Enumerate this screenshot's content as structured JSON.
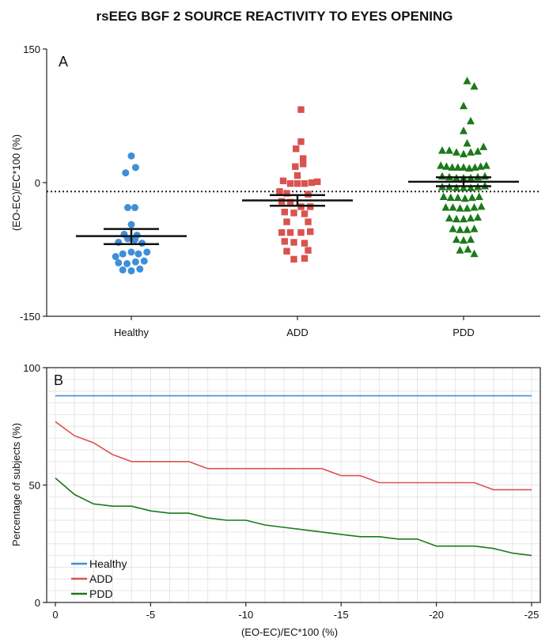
{
  "chart_data": [
    {
      "panel": "A",
      "type": "scatter",
      "title": "rsEEG BGF 2 SOURCE REACTIVITY TO EYES OPENING",
      "ylabel": "(EO-EC)/EC*100 (%)",
      "xlabel": "",
      "ylim": [
        -150,
        150
      ],
      "yticks": [
        150,
        0,
        -150
      ],
      "reference_line_y": -10,
      "categories": [
        "Healthy",
        "ADD",
        "PDD"
      ],
      "colors": {
        "Healthy": "#3f8fd8",
        "ADD": "#d9534f",
        "PDD": "#1a7a1a"
      },
      "markers": {
        "Healthy": "circle",
        "ADD": "square",
        "PDD": "triangle"
      },
      "series": [
        {
          "name": "Healthy",
          "points": [
            [
              0,
              30
            ],
            [
              -0.08,
              11
            ],
            [
              0.06,
              17
            ],
            [
              -0.05,
              -28
            ],
            [
              0.05,
              -28
            ],
            [
              0,
              -47
            ],
            [
              -0.1,
              -58
            ],
            [
              0.08,
              -59
            ],
            [
              -0.18,
              -67
            ],
            [
              -0.05,
              -63
            ],
            [
              0.05,
              -64
            ],
            [
              0.15,
              -68
            ],
            [
              -0.22,
              -83
            ],
            [
              -0.12,
              -80
            ],
            [
              0,
              -78
            ],
            [
              0.1,
              -80
            ],
            [
              0.22,
              -78
            ],
            [
              -0.18,
              -90
            ],
            [
              -0.06,
              -91
            ],
            [
              0.06,
              -89
            ],
            [
              0.18,
              -88
            ],
            [
              -0.12,
              -98
            ],
            [
              0,
              -99
            ],
            [
              0.12,
              -97
            ]
          ],
          "mean": -60,
          "sem_low": -69,
          "sem_high": -52
        },
        {
          "name": "ADD",
          "points": [
            [
              0.05,
              82
            ],
            [
              0.05,
              46
            ],
            [
              -0.02,
              38
            ],
            [
              0.08,
              27
            ],
            [
              -0.03,
              18
            ],
            [
              0.08,
              21
            ],
            [
              0,
              8
            ],
            [
              -0.2,
              2
            ],
            [
              -0.1,
              -1
            ],
            [
              0,
              -1
            ],
            [
              0.1,
              -1
            ],
            [
              0.2,
              0
            ],
            [
              0.28,
              1
            ],
            [
              -0.25,
              -10
            ],
            [
              -0.15,
              -12
            ],
            [
              0.15,
              -13
            ],
            [
              -0.22,
              -21
            ],
            [
              -0.1,
              -22
            ],
            [
              0.05,
              -27
            ],
            [
              0.18,
              -27
            ],
            [
              -0.18,
              -33
            ],
            [
              -0.05,
              -34
            ],
            [
              0.1,
              -35
            ],
            [
              -0.15,
              -44
            ],
            [
              0.15,
              -44
            ],
            [
              -0.22,
              -56
            ],
            [
              -0.1,
              -56
            ],
            [
              0.05,
              -56
            ],
            [
              0.18,
              -55
            ],
            [
              -0.18,
              -66
            ],
            [
              -0.05,
              -67
            ],
            [
              0.1,
              -68
            ],
            [
              -0.15,
              -77
            ],
            [
              0.15,
              -76
            ],
            [
              -0.05,
              -86
            ],
            [
              0.1,
              -85
            ]
          ],
          "mean": -20,
          "sem_low": -26,
          "sem_high": -14
        },
        {
          "name": "PDD",
          "points": [
            [
              0.05,
              114
            ],
            [
              0.15,
              108
            ],
            [
              0,
              86
            ],
            [
              0.1,
              69
            ],
            [
              0,
              58
            ],
            [
              0.05,
              44
            ],
            [
              -0.3,
              36
            ],
            [
              -0.2,
              36
            ],
            [
              -0.1,
              34
            ],
            [
              0,
              32
            ],
            [
              0.1,
              34
            ],
            [
              0.2,
              35
            ],
            [
              0.28,
              40
            ],
            [
              -0.32,
              19
            ],
            [
              -0.24,
              18
            ],
            [
              -0.16,
              17
            ],
            [
              -0.08,
              17
            ],
            [
              0,
              17
            ],
            [
              0.08,
              16
            ],
            [
              0.16,
              17
            ],
            [
              0.24,
              18
            ],
            [
              0.32,
              19
            ],
            [
              -0.3,
              7
            ],
            [
              -0.2,
              6
            ],
            [
              -0.1,
              5
            ],
            [
              0,
              5
            ],
            [
              0.1,
              5
            ],
            [
              0.2,
              6
            ],
            [
              0.3,
              7
            ],
            [
              -0.3,
              -5
            ],
            [
              -0.2,
              -5
            ],
            [
              -0.1,
              -6
            ],
            [
              0,
              -6
            ],
            [
              0.1,
              -6
            ],
            [
              0.2,
              -5
            ],
            [
              0.3,
              -4
            ],
            [
              -0.28,
              -16
            ],
            [
              -0.18,
              -17
            ],
            [
              -0.08,
              -17
            ],
            [
              0.02,
              -18
            ],
            [
              0.12,
              -17
            ],
            [
              0.22,
              -16
            ],
            [
              -0.25,
              -28
            ],
            [
              -0.15,
              -28
            ],
            [
              -0.05,
              -29
            ],
            [
              0.05,
              -29
            ],
            [
              0.15,
              -28
            ],
            [
              0.25,
              -27
            ],
            [
              -0.2,
              -40
            ],
            [
              -0.1,
              -41
            ],
            [
              0,
              -41
            ],
            [
              0.1,
              -40
            ],
            [
              0.2,
              -39
            ],
            [
              -0.15,
              -52
            ],
            [
              -0.05,
              -53
            ],
            [
              0.05,
              -53
            ],
            [
              0.15,
              -52
            ],
            [
              -0.1,
              -64
            ],
            [
              0,
              -65
            ],
            [
              0.1,
              -64
            ],
            [
              -0.05,
              -76
            ],
            [
              0.06,
              -75
            ],
            [
              0.15,
              -80
            ]
          ],
          "mean": 1,
          "sem_low": -4,
          "sem_high": 6
        }
      ]
    },
    {
      "panel": "B",
      "type": "line",
      "xlabel": "(EO-EC)/EC*100 (%)",
      "ylabel": "Percentage of subjects (%)",
      "xlim": [
        0,
        -25
      ],
      "ylim": [
        0,
        100
      ],
      "xticks": [
        0,
        -5,
        -10,
        -15,
        -20,
        -25
      ],
      "yticks": [
        100,
        50,
        0
      ],
      "grid": true,
      "legend_position": "bottom-left",
      "x": [
        0,
        -1,
        -2,
        -3,
        -4,
        -5,
        -6,
        -7,
        -8,
        -9,
        -10,
        -11,
        -12,
        -13,
        -14,
        -15,
        -16,
        -17,
        -18,
        -19,
        -20,
        -21,
        -22,
        -23,
        -24,
        -25
      ],
      "series": [
        {
          "name": "Healthy",
          "color": "#3f8fd8",
          "values": [
            88,
            88,
            88,
            88,
            88,
            88,
            88,
            88,
            88,
            88,
            88,
            88,
            88,
            88,
            88,
            88,
            88,
            88,
            88,
            88,
            88,
            88,
            88,
            88,
            88,
            88
          ]
        },
        {
          "name": "ADD",
          "color": "#d9534f",
          "values": [
            77,
            71,
            68,
            63,
            60,
            60,
            60,
            60,
            57,
            57,
            57,
            57,
            57,
            57,
            57,
            54,
            54,
            51,
            51,
            51,
            51,
            51,
            51,
            48,
            48,
            48
          ]
        },
        {
          "name": "PDD",
          "color": "#1a7a1a",
          "values": [
            53,
            46,
            42,
            41,
            41,
            39,
            38,
            38,
            36,
            35,
            35,
            33,
            32,
            31,
            30,
            29,
            28,
            28,
            27,
            27,
            24,
            24,
            24,
            23,
            21,
            20
          ]
        }
      ]
    }
  ]
}
